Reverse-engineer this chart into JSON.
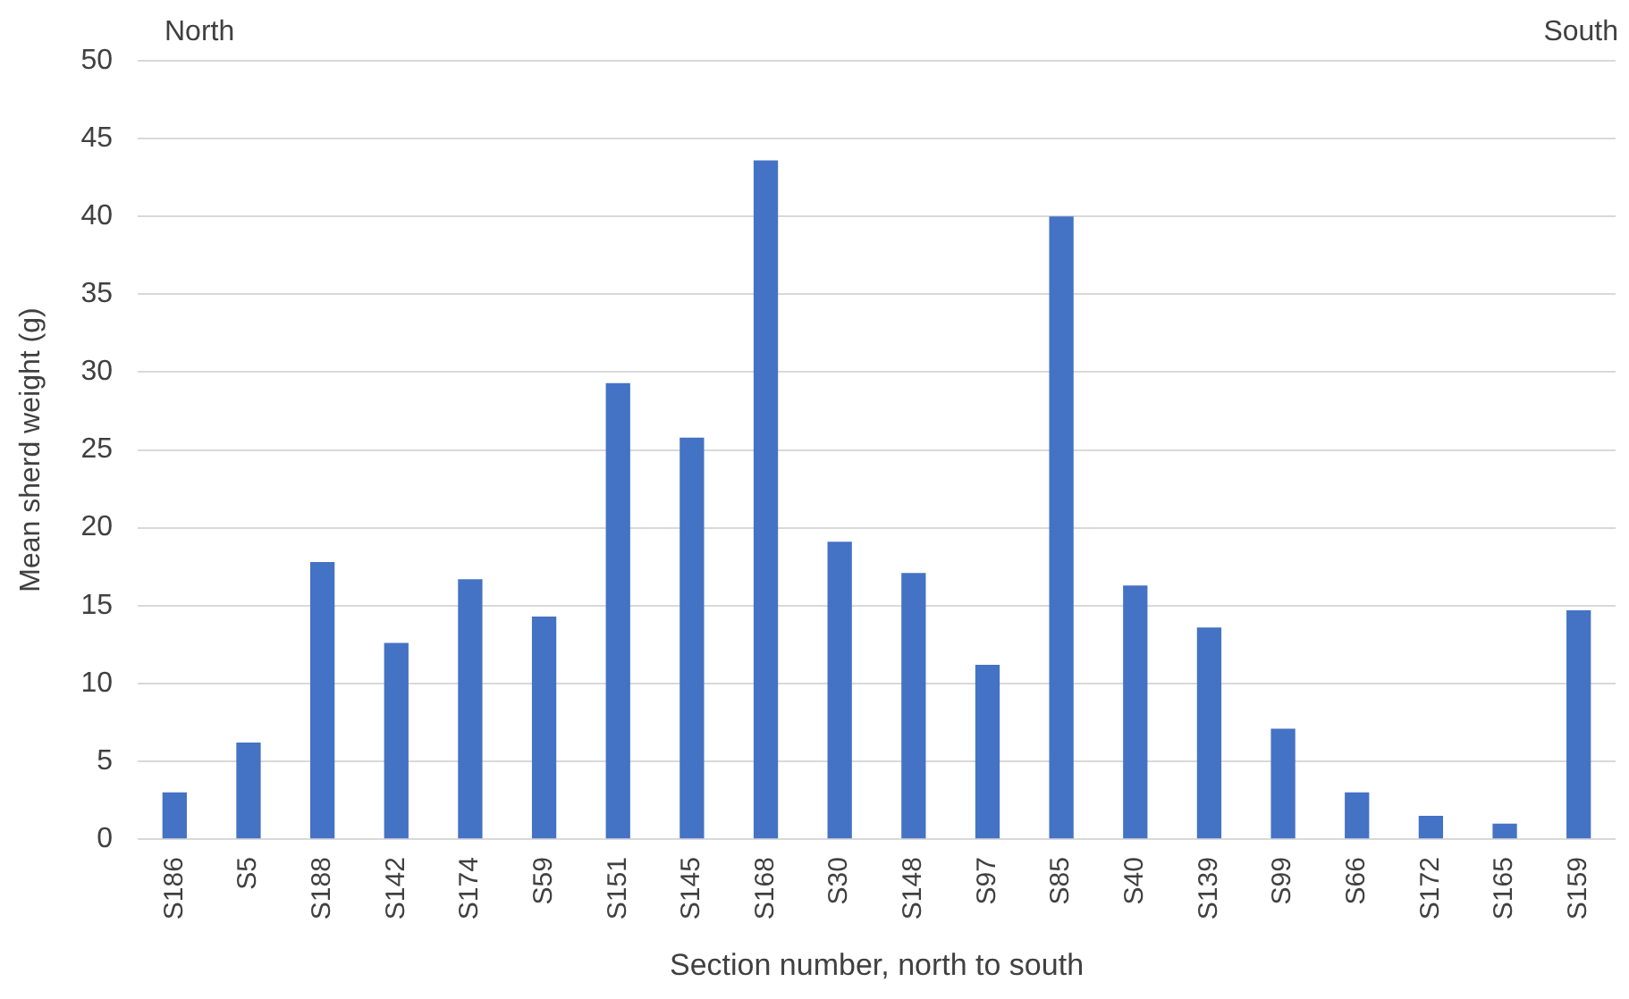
{
  "chart_data": {
    "type": "bar",
    "xlabel": "Section number, north to south",
    "ylabel": "Mean sherd weight (g)",
    "annotations": [
      "North",
      "South"
    ],
    "categories": [
      "S186",
      "S5",
      "S188",
      "S142",
      "S174",
      "S59",
      "S151",
      "S145",
      "S168",
      "S30",
      "S148",
      "S97",
      "S85",
      "S40",
      "S139",
      "S99",
      "S66",
      "S172",
      "S165",
      "S159"
    ],
    "values": [
      3.0,
      6.2,
      17.8,
      12.6,
      16.7,
      14.3,
      29.3,
      25.8,
      43.6,
      19.1,
      17.1,
      11.2,
      40.0,
      16.3,
      13.6,
      7.1,
      3.0,
      1.5,
      1.0,
      14.7
    ],
    "color": "#4472c4",
    "ylim": [
      0,
      50
    ],
    "yticks": [
      0,
      5,
      10,
      15,
      20,
      25,
      30,
      35,
      40,
      45,
      50
    ],
    "grid": "y",
    "legend": false
  }
}
